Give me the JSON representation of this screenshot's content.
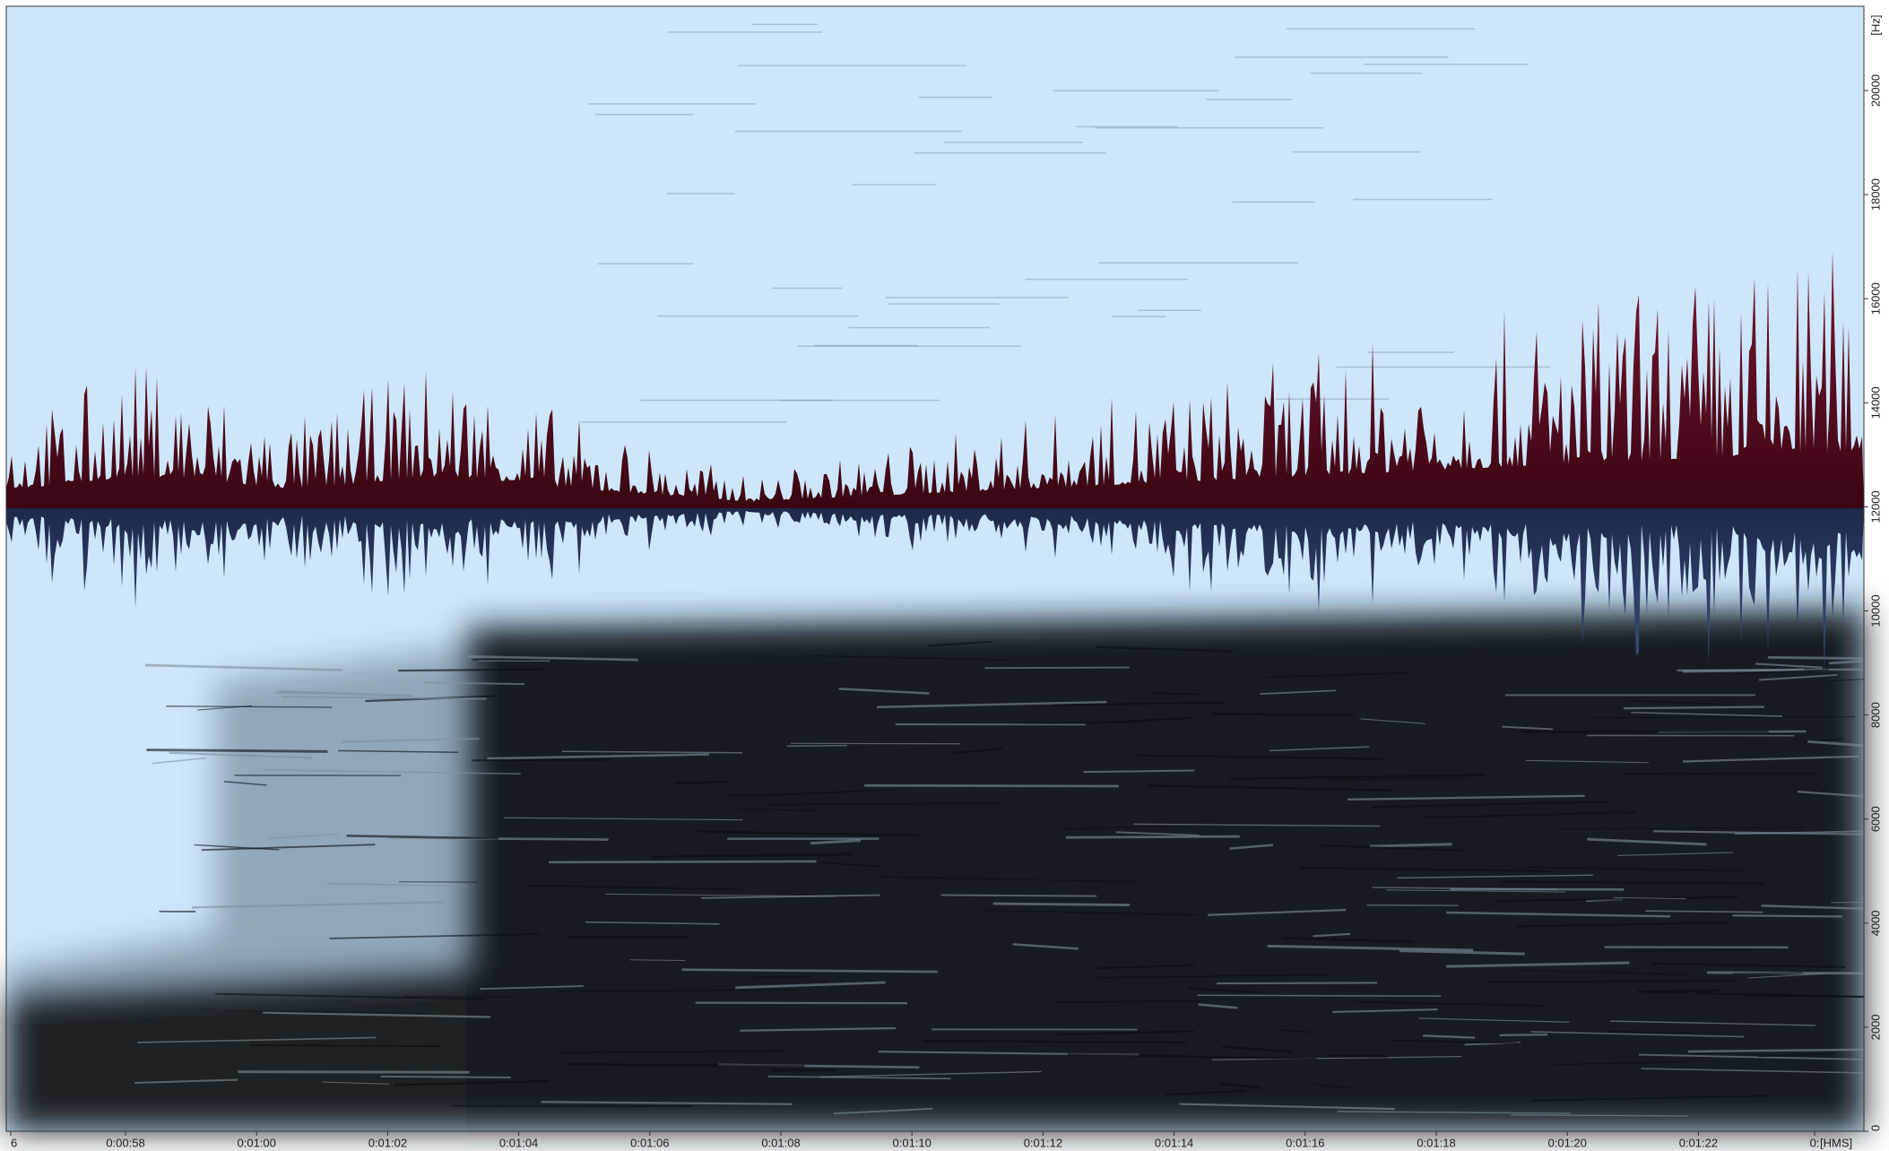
{
  "x_axis": {
    "labels": [
      "6",
      "0:00:58",
      "0:01:00",
      "0:01:02",
      "0:01:04",
      "0:01:06",
      "0:01:08",
      "0:01:10",
      "0:01:12",
      "0:01:14",
      "0:01:16",
      "0:01:18",
      "0:01:20",
      "0:01:22",
      "0:"
    ],
    "unit": "[HMS]"
  },
  "y_axis": {
    "labels": [
      "0",
      "2000",
      "4000",
      "6000",
      "8000",
      "10000",
      "12000",
      "14000",
      "16000",
      "18000",
      "20000"
    ],
    "unit": "[Hz]"
  }
}
